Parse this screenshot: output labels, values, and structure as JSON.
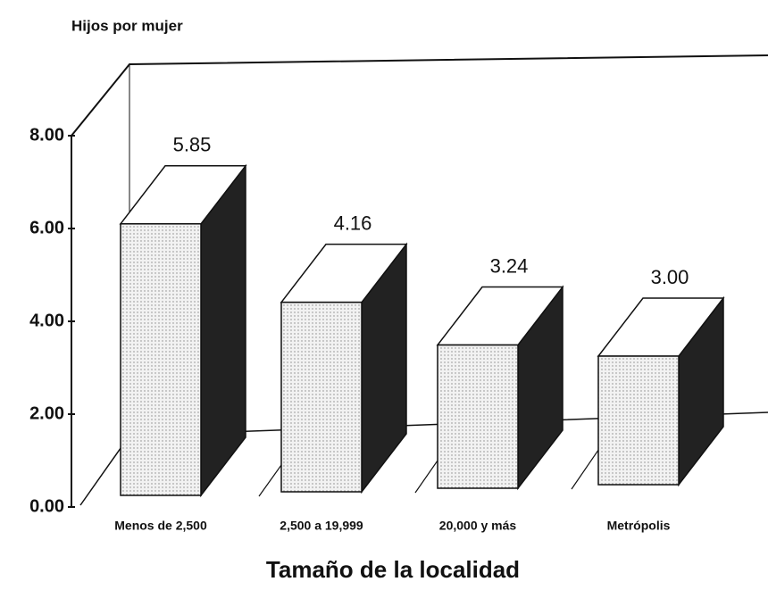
{
  "chart_data": {
    "type": "bar3d",
    "y_label": "Hijos por mujer",
    "x_label": "Tamaño de la localidad",
    "categories": [
      "Menos de 2,500",
      "2,500 a 19,999",
      "20,000 y más",
      "Metrópolis"
    ],
    "values": [
      5.85,
      4.16,
      3.24,
      3.0
    ],
    "value_labels": [
      "5.85",
      "4.16",
      "3.24",
      "3.00"
    ],
    "ylim": [
      0,
      8
    ],
    "yticks": [
      {
        "value": 0,
        "label": "0.00"
      },
      {
        "value": 2,
        "label": "2.00"
      },
      {
        "value": 4,
        "label": "4.00"
      },
      {
        "value": 6,
        "label": "6.00"
      },
      {
        "value": 8,
        "label": "8.00"
      }
    ],
    "color": "#eeeeee",
    "side_color": "#222222"
  }
}
